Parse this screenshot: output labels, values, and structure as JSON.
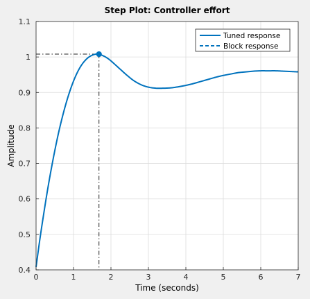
{
  "chart_data": {
    "type": "line",
    "title": "Step Plot: Controller effort",
    "xlabel": "Time (seconds)",
    "ylabel": "Amplitude",
    "xlim": [
      0,
      7
    ],
    "ylim": [
      0.4,
      1.1
    ],
    "xticks": [
      "0",
      "1",
      "2",
      "3",
      "4",
      "5",
      "6",
      "7"
    ],
    "yticks": [
      "0.4",
      "0.5",
      "0.6",
      "0.7",
      "0.8",
      "0.9",
      "1",
      "1.1"
    ],
    "grid": true,
    "legend": {
      "position": "top-right",
      "entries": [
        "Tuned response",
        "Block response"
      ]
    },
    "colors": {
      "series": "#0072bd",
      "marker_line": "#222222",
      "grid": "#dcdcdc"
    },
    "series": [
      {
        "name": "Tuned response",
        "style": "solid",
        "x": [
          0,
          0.1,
          0.2,
          0.3,
          0.4,
          0.5,
          0.6,
          0.7,
          0.8,
          0.9,
          1.0,
          1.1,
          1.2,
          1.3,
          1.4,
          1.5,
          1.6,
          1.7,
          1.8,
          1.9,
          2.0,
          2.2,
          2.4,
          2.6,
          2.8,
          3.0,
          3.2,
          3.4,
          3.6,
          3.8,
          4.0,
          4.2,
          4.4,
          4.6,
          4.8,
          5.0,
          5.2,
          5.4,
          5.6,
          5.8,
          6.0,
          6.2,
          6.4,
          6.6,
          6.8,
          7.0
        ],
        "y": [
          0.408,
          0.485,
          0.555,
          0.621,
          0.681,
          0.736,
          0.786,
          0.83,
          0.869,
          0.903,
          0.932,
          0.956,
          0.975,
          0.989,
          0.999,
          1.005,
          1.008,
          1.007,
          1.003,
          0.997,
          0.989,
          0.97,
          0.951,
          0.934,
          0.922,
          0.915,
          0.912,
          0.912,
          0.913,
          0.916,
          0.92,
          0.925,
          0.931,
          0.937,
          0.943,
          0.948,
          0.952,
          0.956,
          0.958,
          0.96,
          0.961,
          0.961,
          0.961,
          0.96,
          0.959,
          0.958
        ]
      }
    ],
    "annotations": {
      "peak": {
        "x": 1.68,
        "y": 1.008
      }
    }
  }
}
